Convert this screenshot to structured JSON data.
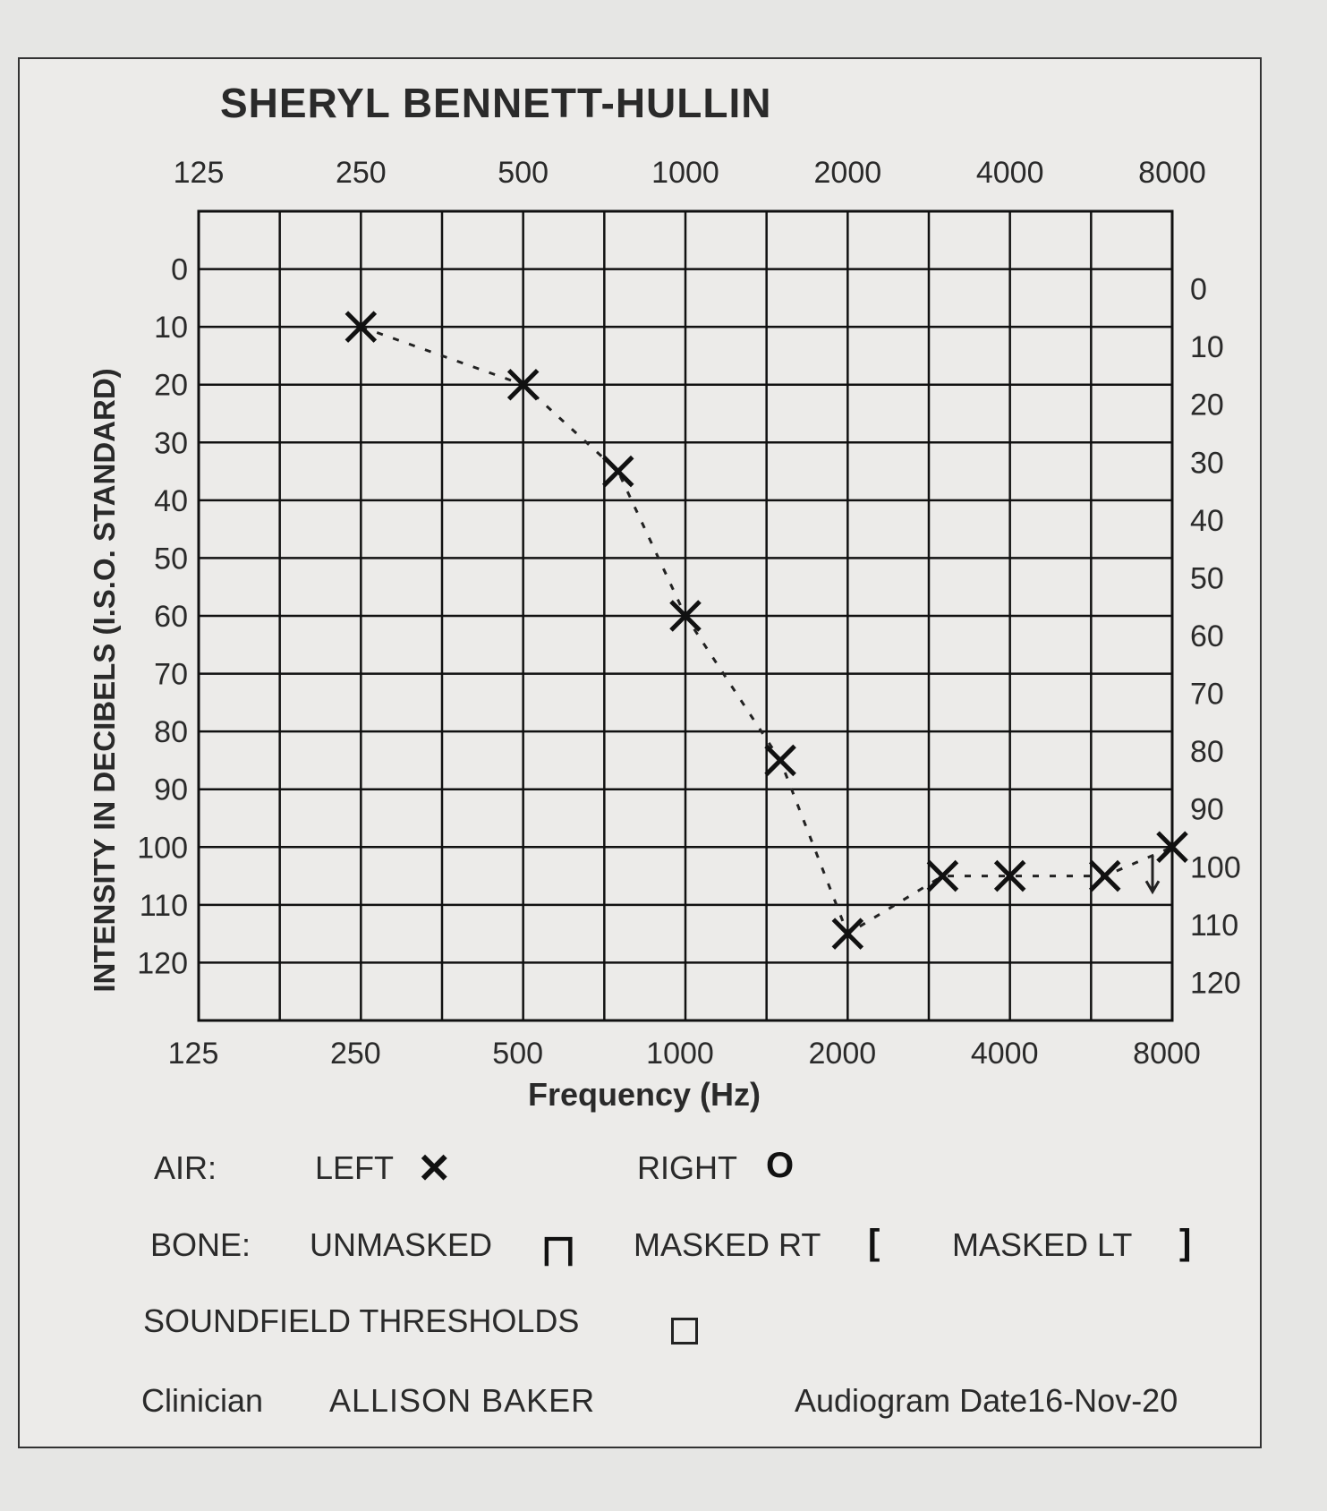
{
  "patient_name": "SHERYL BENNETT-HULLIN",
  "chart_data": {
    "type": "line",
    "title": "SHERYL BENNETT-HULLIN",
    "xlabel": "Frequency (Hz)",
    "ylabel": "INTENSITY IN DECIBELS (I.S.O. STANDARD)",
    "x_tick_labels": [
      "125",
      "250",
      "500",
      "1000",
      "2000",
      "4000",
      "8000"
    ],
    "x_ticks": [
      125,
      250,
      500,
      1000,
      2000,
      4000,
      8000
    ],
    "x_scale": "log2",
    "xlim": [
      125,
      8000
    ],
    "y_tick_labels": [
      "0",
      "10",
      "20",
      "30",
      "40",
      "50",
      "60",
      "70",
      "80",
      "90",
      "100",
      "110",
      "120"
    ],
    "ylim": [
      -10,
      130
    ],
    "y_inverted": true,
    "grid": true,
    "series": [
      {
        "name": "LEFT",
        "marker": "x",
        "line": "dashed",
        "x": [
          250,
          500,
          750,
          1000,
          1500,
          2000,
          3000,
          4000,
          6000,
          8000
        ],
        "y": [
          10,
          20,
          35,
          60,
          85,
          115,
          105,
          105,
          105,
          100
        ]
      }
    ]
  },
  "legend": {
    "air_label": "AIR:",
    "left_label": "LEFT",
    "left_symbol": "✕",
    "right_label": "RIGHT",
    "right_symbol": "O",
    "bone_label": "BONE:",
    "unmasked_label": "UNMASKED",
    "unmasked_symbol": "ㄇ",
    "masked_rt_label": "MASKED RT",
    "masked_rt_symbol": "[",
    "masked_lt_label": "MASKED LT",
    "masked_lt_symbol": "]",
    "soundfield_label": "SOUNDFIELD THRESHOLDS"
  },
  "footer": {
    "clinician_label": "Clinician",
    "clinician_name": "ALLISON BAKER",
    "date_label": "Audiogram Date",
    "date_value": "16-Nov-20"
  }
}
